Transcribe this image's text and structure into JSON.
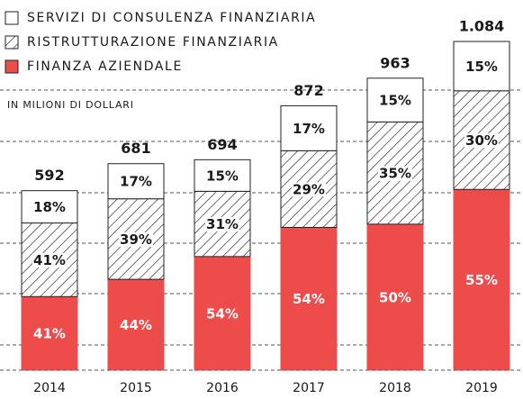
{
  "chart_data": {
    "type": "stacked_bar",
    "subtitle": "IN MILIONI DI DOLLARI",
    "categories": [
      "2014",
      "2015",
      "2016",
      "2017",
      "2018",
      "2019"
    ],
    "series": [
      {
        "name": "SERVIZI DI CONSULENZA FINANZIARIA",
        "color": "#ffffff",
        "values": [
          18,
          17,
          15,
          17,
          15,
          15
        ],
        "value_labels": [
          "18%",
          "17%",
          "15%",
          "17%",
          "15%",
          "15%"
        ]
      },
      {
        "name": "RISTRUTTURAZIONE FINANZIARIA",
        "color": "#222222",
        "pattern": "hatch",
        "values": [
          41,
          39,
          31,
          29,
          35,
          30
        ],
        "value_labels": [
          "41%",
          "39%",
          "31%",
          "29%",
          "35%",
          "30%"
        ]
      },
      {
        "name": "FINANZA AZIENDALE",
        "color": "#ee4b4b",
        "values": [
          41,
          44,
          54,
          54,
          50,
          55
        ],
        "value_labels": [
          "41%",
          "44%",
          "54%",
          "54%",
          "50%",
          "55%"
        ]
      }
    ],
    "totals": {
      "values": [
        592,
        681,
        694,
        872,
        963,
        1084
      ],
      "value_labels": [
        "592",
        "681",
        "694",
        "872",
        "963",
        "1.084"
      ]
    },
    "ylim": [
      0,
      1200
    ]
  }
}
